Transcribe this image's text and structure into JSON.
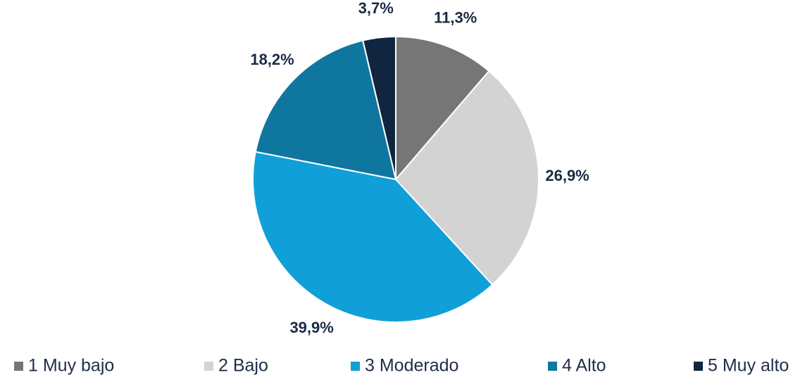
{
  "chart_data": {
    "type": "pie",
    "categories": [
      "1 Muy bajo",
      "2 Bajo",
      "3 Moderado",
      "4 Alto",
      "5 Muy alto"
    ],
    "values": [
      11.3,
      26.9,
      39.9,
      18.2,
      3.7
    ],
    "value_labels": [
      "11,3%",
      "26,9%",
      "39,9%",
      "18,2%",
      "3,7%"
    ],
    "colors": [
      "#767676",
      "#d3d3d3",
      "#119fd8",
      "#0f76a0",
      "#10253f"
    ],
    "legend": "bottom"
  }
}
